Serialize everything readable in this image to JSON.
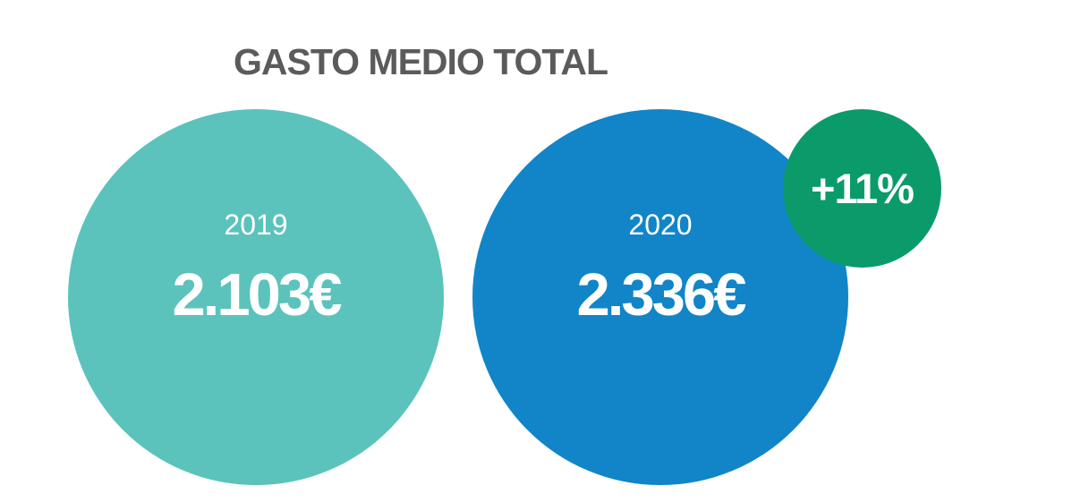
{
  "chart_data": {
    "type": "bubble-comparison",
    "title": "GASTO MEDIO TOTAL",
    "categories": [
      "2019",
      "2020"
    ],
    "values": [
      2103,
      2336
    ],
    "value_labels": [
      "2.103€",
      "2.336€"
    ],
    "change_label": "+11%",
    "colors": {
      "2019": "#5bc3bc",
      "2020": "#1185c8",
      "change": "#0b9b6a",
      "title": "#5b5b5b"
    }
  }
}
